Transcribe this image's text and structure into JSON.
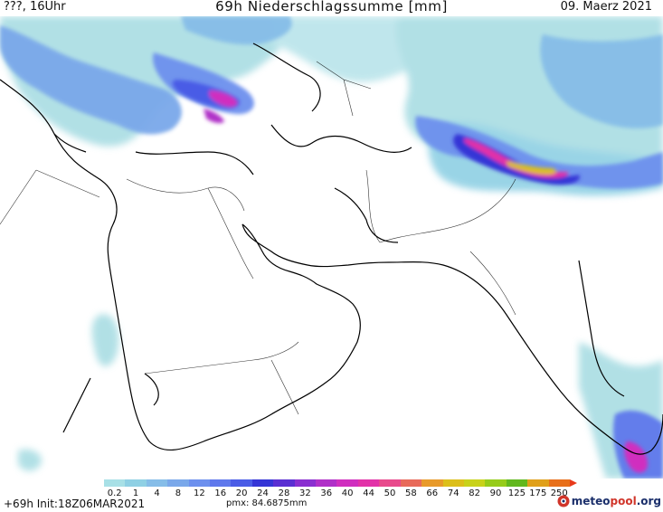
{
  "header": {
    "left": "???, 16Uhr",
    "title": "69h Niederschlagssumme [mm]",
    "date": "09. Maerz 2021"
  },
  "legend": {
    "labels": [
      "0.2",
      "1",
      "4",
      "8",
      "12",
      "16",
      "20",
      "24",
      "28",
      "32",
      "36",
      "40",
      "44",
      "50",
      "58",
      "66",
      "74",
      "82",
      "90",
      "125",
      "175",
      "250"
    ],
    "colors": [
      "#a8e0e6",
      "#8fd0e4",
      "#86bde8",
      "#7aa8ea",
      "#6d90ee",
      "#5f78ec",
      "#4a5ce6",
      "#3535d6",
      "#5a2fd2",
      "#8a2fd0",
      "#b030c8",
      "#d02fbf",
      "#e233a8",
      "#e84a8c",
      "#e86a5a",
      "#e89a2a",
      "#dcbf1a",
      "#c8d21a",
      "#96cc1a",
      "#62b81e",
      "#e0a01a",
      "#e8701a"
    ]
  },
  "footer": {
    "init": "+69h Init:18Z06MAR2021",
    "pmx": "pmx: 84.6875mm",
    "brand_main": "meteo",
    "brand_accent": "pool",
    "brand_suffix": ".org"
  }
}
